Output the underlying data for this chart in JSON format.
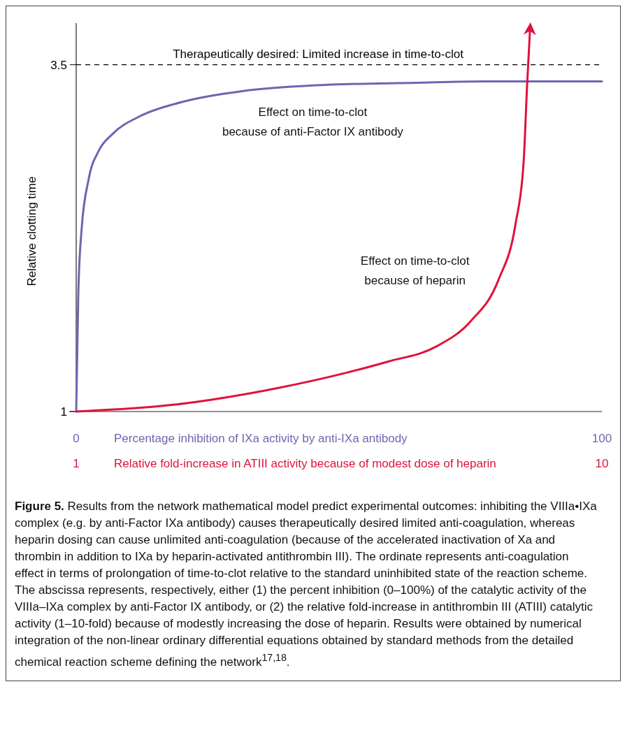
{
  "chart_data": {
    "type": "line",
    "ylabel": "Relative clotting time",
    "xlabel": "Percentage inhibition of IXa activity by anti-IXa antibody",
    "x2label": "Relative fold-increase in ATIII activity because of modest dose of heparin",
    "xlim": [
      0,
      100
    ],
    "xticks": [
      0,
      100
    ],
    "x2lim": [
      1,
      10
    ],
    "x2ticks": [
      1,
      10
    ],
    "ylim": [
      1,
      3.8
    ],
    "yticks": [
      1,
      3.5
    ],
    "grid": false,
    "marker": "none",
    "line_style": "solid",
    "series": [
      {
        "name": "Effect on time-to-clot because of anti-Factor IX antibody",
        "color": "#6b67b0",
        "x": [
          0,
          0.4,
          1,
          2.4,
          4.3,
          6.9,
          12.2,
          20,
          31.8,
          45,
          64.6,
          77.7,
          100
        ],
        "values": [
          1,
          1.85,
          2.3,
          2.68,
          2.88,
          3.0,
          3.13,
          3.23,
          3.31,
          3.35,
          3.37,
          3.38,
          3.38
        ]
      },
      {
        "name": "Effect on time-to-clot because of heparin",
        "color": "#e0123a",
        "axis": "x2",
        "x": [
          1,
          2.69,
          4.46,
          5.63,
          6.34,
          7.17,
          7.75,
          8.23,
          8.52,
          8.66,
          8.72,
          8.77
        ],
        "values": [
          1,
          1.05,
          1.17,
          1.28,
          1.36,
          1.47,
          1.65,
          1.95,
          2.35,
          2.8,
          3.36,
          3.76
        ]
      }
    ],
    "ref_lines": [
      {
        "axis": "y",
        "value": 3.5,
        "label": "Therapeutically desired: Limited increase in time-to-clot",
        "color": "#000000",
        "line_style": "dashed"
      }
    ],
    "annotations": [
      "Figure 5.",
      "Results from the network mathematical model predict experimental outcomes: inhibiting the VIIIa•IXa complex (e.g. by anti-Factor IXa antibody) causes therapeutically desired limited anti-coagulation, whereas heparin dosing can cause unlimited anti-coagulation (because of the accelerated inactivation of Xa and thrombin in addition to IXa by heparin-activated antithrombin III). The ordinate represents anti-coagulation effect in terms of prolongation of time-to-clot relative to the standard uninhibited state of the reaction scheme. The abscissa represents, respectively, either (1) the percent inhibition (0–100%) of the catalytic activity of the VIIIa–IXa complex by anti-Factor IX antibody, or (2) the relative fold-increase in antithrombin III (ATIII) catalytic activity (1–10-fold) because of modestly increasing the dose of heparin. Results were obtained by numerical integration of the non-linear ordinary differential equations obtained by standard methods from the detailed chemical reaction scheme defining the network$^{17,18}$."
    ]
  }
}
